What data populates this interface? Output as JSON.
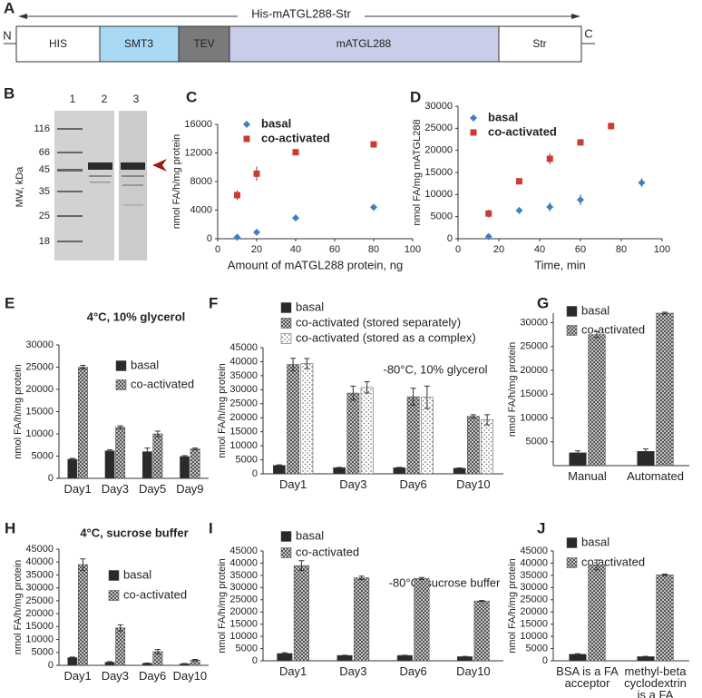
{
  "panel_a": {
    "label": "A",
    "title": "His-mATGL288-Str",
    "n_term": "N",
    "c_term": "C",
    "segments": [
      "HIS",
      "SMT3",
      "TEV",
      "mATGL288",
      "Str"
    ]
  },
  "panel_b": {
    "label": "B",
    "axis_label": "MW, kDa",
    "lanes": [
      "1",
      "2",
      "3"
    ],
    "markers": [
      "116",
      "66",
      "45",
      "35",
      "25",
      "18"
    ]
  },
  "chart_data": [
    {
      "type": "scatter",
      "panel_label": "C",
      "x_label": "Amount of mATGL288 protein, ng",
      "y_label": "nmol FA/h/mg protein",
      "xlim": [
        0,
        100
      ],
      "xticks": [
        0,
        20,
        40,
        60,
        80,
        100
      ],
      "ylim": [
        0,
        16000
      ],
      "yticks": [
        0,
        4000,
        8000,
        12000,
        16000
      ],
      "series": [
        {
          "name": "basal",
          "color": "#3f7fc4",
          "marker": "diamond",
          "x": [
            10,
            20,
            40,
            80
          ],
          "values": [
            200,
            900,
            2900,
            4400
          ],
          "errors": [
            100,
            100,
            300,
            100
          ]
        },
        {
          "name": "co-activated",
          "color": "#cc3b33",
          "marker": "square",
          "x": [
            10,
            20,
            40,
            80
          ],
          "values": [
            6100,
            9100,
            12100,
            13200
          ],
          "errors": [
            700,
            1000,
            200,
            200
          ]
        }
      ]
    },
    {
      "type": "scatter",
      "panel_label": "D",
      "x_label": "Time, min",
      "y_label": "nmol FA/mg mATGL288",
      "xlim": [
        0,
        100
      ],
      "xticks": [
        0,
        20,
        40,
        60,
        80,
        100
      ],
      "ylim": [
        0,
        30000
      ],
      "yticks": [
        0,
        5000,
        10000,
        15000,
        20000,
        25000,
        30000
      ],
      "series": [
        {
          "name": "basal",
          "color": "#3f7fc4",
          "marker": "diamond",
          "x": [
            15,
            30,
            45,
            60,
            90
          ],
          "values": [
            500,
            6400,
            7200,
            8800,
            12700
          ],
          "errors": [
            300,
            300,
            1000,
            1200,
            1000
          ]
        },
        {
          "name": "co-activated",
          "color": "#cc3b33",
          "marker": "square",
          "x": [
            15,
            30,
            45,
            60,
            75
          ],
          "values": [
            5700,
            13000,
            18100,
            21800,
            25500
          ],
          "errors": [
            900,
            600,
            1300,
            400,
            800
          ]
        }
      ]
    },
    {
      "type": "bar",
      "panel_label": "E",
      "title": "4°C, 10% glycerol",
      "y_label": "nmol FA/h/mg protein",
      "categories": [
        "Day1",
        "Day3",
        "Day5",
        "Day9"
      ],
      "ylim": [
        0,
        30000
      ],
      "yticks": [
        0,
        5000,
        10000,
        15000,
        20000,
        25000,
        30000
      ],
      "series": [
        {
          "name": "basal",
          "color": "#2a2a2a",
          "values": [
            4300,
            6200,
            6000,
            4900
          ],
          "errors": [
            200,
            200,
            800,
            200
          ]
        },
        {
          "name": "co-activated",
          "color": "#9a9a9a",
          "pattern": "checker",
          "values": [
            25000,
            11500,
            10000,
            6600
          ],
          "errors": [
            400,
            300,
            600,
            200
          ]
        }
      ]
    },
    {
      "type": "bar",
      "panel_label": "F",
      "annotation": "-80°C, 10% glycerol",
      "y_label": "nmol FA/h/mg protein",
      "categories": [
        "Day1",
        "Day3",
        "Day6",
        "Day10"
      ],
      "ylim": [
        0,
        45000
      ],
      "yticks": [
        0,
        5000,
        10000,
        15000,
        20000,
        25000,
        30000,
        35000,
        40000,
        45000
      ],
      "series": [
        {
          "name": "basal",
          "color": "#2a2a2a",
          "values": [
            3000,
            2200,
            2200,
            2000
          ],
          "errors": [
            200,
            100,
            100,
            100
          ]
        },
        {
          "name": "co-activated (stored separately)",
          "color": "#9a9a9a",
          "pattern": "checker",
          "values": [
            39000,
            28800,
            27500,
            20500
          ],
          "errors": [
            2200,
            2500,
            3000,
            600
          ]
        },
        {
          "name": "co-activated (stored as a complex)",
          "color": "#e0e0e0",
          "pattern": "dots",
          "values": [
            39300,
            30800,
            27300,
            19300
          ],
          "errors": [
            1800,
            2000,
            4000,
            1800
          ]
        }
      ]
    },
    {
      "type": "bar",
      "panel_label": "G",
      "y_label": "nmol FA/h/mg protein",
      "categories": [
        "Manual",
        "Automated"
      ],
      "ylim": [
        0,
        32000
      ],
      "yticks": [
        5000,
        10000,
        15000,
        20000,
        25000,
        30000
      ],
      "series": [
        {
          "name": "basal",
          "color": "#2a2a2a",
          "values": [
            2700,
            3000
          ],
          "errors": [
            400,
            500
          ]
        },
        {
          "name": "co-activated",
          "color": "#9a9a9a",
          "pattern": "checker",
          "values": [
            27500,
            32000
          ],
          "errors": [
            600,
            200
          ]
        }
      ]
    },
    {
      "type": "bar",
      "panel_label": "H",
      "title": "4°C, sucrose buffer",
      "y_label": "nmol FA/h/mg protein",
      "categories": [
        "Day1",
        "Day3",
        "Day6",
        "Day10"
      ],
      "ylim": [
        0,
        45000
      ],
      "yticks": [
        0,
        5000,
        10000,
        15000,
        20000,
        25000,
        30000,
        35000,
        40000,
        45000
      ],
      "series": [
        {
          "name": "basal",
          "color": "#2a2a2a",
          "values": [
            3000,
            1200,
            800,
            600
          ],
          "errors": [
            200,
            200,
            100,
            100
          ]
        },
        {
          "name": "co-activated",
          "color": "#9a9a9a",
          "pattern": "checker",
          "values": [
            39000,
            14500,
            5300,
            2000
          ],
          "errors": [
            2200,
            1200,
            800,
            300
          ]
        }
      ]
    },
    {
      "type": "bar",
      "panel_label": "I",
      "annotation": "-80°C, sucrose buffer",
      "y_label": "nmol FA/h/mg protein",
      "categories": [
        "Day1",
        "Day3",
        "Day6",
        "Day10"
      ],
      "ylim": [
        0,
        45000
      ],
      "yticks": [
        0,
        5000,
        10000,
        15000,
        20000,
        25000,
        30000,
        35000,
        40000,
        45000
      ],
      "series": [
        {
          "name": "basal",
          "color": "#2a2a2a",
          "values": [
            3000,
            2200,
            2200,
            1700
          ],
          "errors": [
            300,
            100,
            100,
            100
          ]
        },
        {
          "name": "co-activated",
          "color": "#9a9a9a",
          "pattern": "checker",
          "values": [
            39000,
            34000,
            33700,
            24500
          ],
          "errors": [
            2000,
            700,
            400,
            200
          ]
        }
      ]
    },
    {
      "type": "bar",
      "panel_label": "J",
      "y_label": "nmol FA/h/mg protein",
      "categories": [
        "BSA is a FA acceptor",
        "methyl-beta cyclodextrin is a FA acceptor"
      ],
      "ylim": [
        0,
        45000
      ],
      "yticks": [
        0,
        5000,
        10000,
        15000,
        20000,
        25000,
        30000,
        35000,
        40000,
        45000
      ],
      "series": [
        {
          "name": "basal",
          "color": "#2a2a2a",
          "values": [
            2700,
            1700
          ],
          "errors": [
            200,
            100
          ]
        },
        {
          "name": "co-activated",
          "color": "#9a9a9a",
          "pattern": "checker",
          "values": [
            39300,
            35200
          ],
          "errors": [
            2000,
            300
          ]
        }
      ]
    }
  ]
}
